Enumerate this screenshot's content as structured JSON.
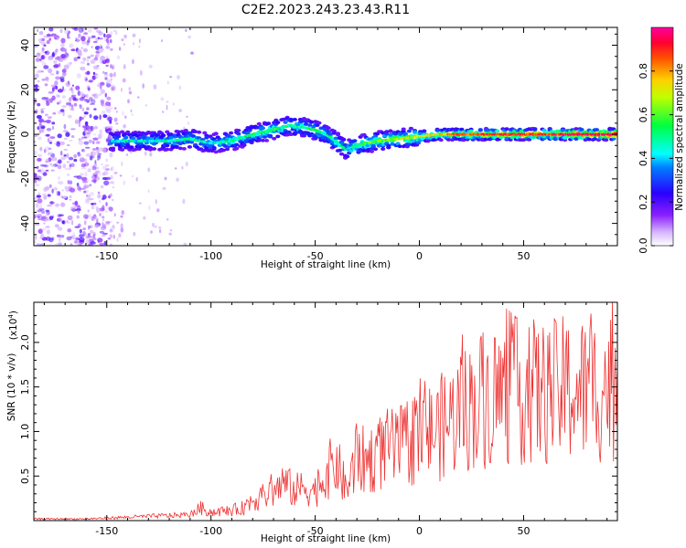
{
  "title": "C2E2.2023.243.23.43.R11",
  "chart_data": [
    {
      "type": "heatmap",
      "xlabel": "Height of straight line (km)",
      "ylabel": "Frequency (Hz)",
      "xlim": [
        -185,
        95
      ],
      "ylim": [
        -50,
        48
      ],
      "xticks": [
        -150,
        -100,
        -50,
        0,
        50
      ],
      "yticks": [
        -40,
        -20,
        0,
        20,
        40
      ],
      "grid": false,
      "colorbar": {
        "label": "Normalized spectral amplitude",
        "range": [
          0,
          1
        ],
        "ticks": [
          0.0,
          0.2,
          0.4,
          0.6,
          0.8
        ],
        "colormap": [
          "#ffffff",
          "#7b00ff",
          "#0000ff",
          "#00ffff",
          "#00ff00",
          "#ffff00",
          "#ff8000",
          "#ff0000",
          "#ff0090"
        ]
      },
      "ridge": {
        "x": [
          -148,
          -140,
          -130,
          -120,
          -110,
          -100,
          -90,
          -80,
          -70,
          -62,
          -55,
          -50,
          -45,
          -40,
          -35,
          -30,
          -20,
          -10,
          0,
          10,
          20,
          40,
          60,
          80,
          95
        ],
        "y": [
          -3,
          -3,
          -3,
          -3,
          -2,
          -4,
          -3,
          0,
          2,
          4,
          3,
          2,
          0,
          -3,
          -7,
          -5,
          -3,
          -2,
          -1,
          0,
          0,
          0,
          0,
          0,
          0
        ],
        "intensity": [
          0.4,
          0.45,
          0.45,
          0.45,
          0.5,
          0.45,
          0.5,
          0.5,
          0.55,
          0.5,
          0.5,
          0.55,
          0.5,
          0.5,
          0.45,
          0.55,
          0.6,
          0.65,
          0.7,
          0.75,
          0.85,
          0.9,
          0.9,
          0.95,
          0.95
        ]
      },
      "noise_region_x": [
        -185,
        -148
      ]
    },
    {
      "type": "line",
      "xlabel": "Height of straight line (km)",
      "ylabel": "SNR (10 * v/v)",
      "y_multiplier": "(x10",
      "y_multiplier_exp": "4",
      "y_multiplier_close": ")",
      "xlim": [
        -185,
        95
      ],
      "ylim": [
        0,
        2.45
      ],
      "xticks": [
        -150,
        -100,
        -50,
        0,
        50
      ],
      "yticks": [
        0.5,
        1.0,
        1.5,
        2.0
      ],
      "ytick_labels": [
        "0.5",
        "1.0",
        "1.5",
        "2.0"
      ],
      "line_color": "#ee3333",
      "series": [
        {
          "x": [
            -185,
            -160,
            -140,
            -130,
            -120,
            -110,
            -105,
            -100,
            -90,
            -85,
            -80,
            -75,
            -70,
            -65,
            -60,
            -55,
            -50,
            -45,
            -40,
            -35,
            -30,
            -25,
            -20,
            -15,
            -10,
            -5,
            0,
            10,
            20,
            30,
            40,
            50,
            60,
            70,
            80,
            90,
            95
          ],
          "y": [
            0.02,
            0.02,
            0.04,
            0.05,
            0.06,
            0.07,
            0.15,
            0.1,
            0.12,
            0.15,
            0.25,
            0.28,
            0.35,
            0.45,
            0.35,
            0.4,
            0.35,
            0.55,
            0.7,
            0.35,
            0.75,
            0.7,
            0.8,
            0.85,
            0.85,
            0.95,
            1.0,
            1.1,
            1.3,
            1.45,
            1.5,
            1.55,
            1.5,
            1.55,
            1.55,
            1.6,
            1.6
          ]
        }
      ]
    }
  ]
}
